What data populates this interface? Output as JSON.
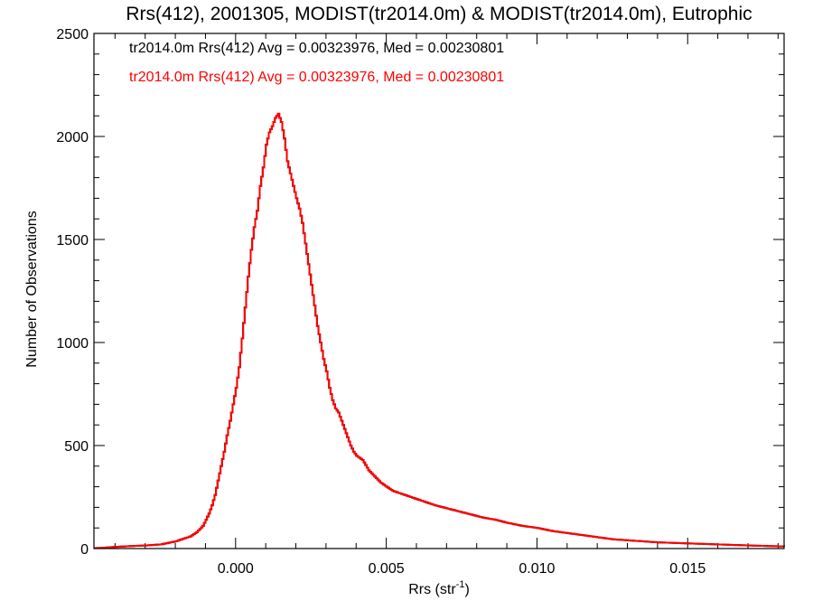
{
  "chart_data": {
    "type": "histogram",
    "title": "Rrs(412), 2001305, MODIST(tr2014.0m) & MODIST(tr2014.0m), Eutrophic",
    "xlabel": "Rrs (str",
    "xlabel_sup": "-1",
    "xlabel_close": ")",
    "ylabel": "Number of Observations",
    "xlim": [
      -0.0047,
      0.0182
    ],
    "ylim": [
      0,
      2500
    ],
    "x_ticks": [
      0.0,
      0.005,
      0.01,
      0.015
    ],
    "x_tick_labels": [
      "0.000",
      "0.005",
      "0.010",
      "0.015"
    ],
    "y_ticks": [
      0,
      500,
      1000,
      1500,
      2000,
      2500
    ],
    "y_tick_labels": [
      "0",
      "500",
      "1000",
      "1500",
      "2000",
      "2500"
    ],
    "grid": false,
    "legend_position": "top-left",
    "legend": [
      {
        "text": "tr2014.0m Rrs(412) Avg = 0.00323976, Med = 0.00230801",
        "color": "#000000"
      },
      {
        "text": "tr2014.0m Rrs(412) Avg = 0.00323976, Med = 0.00230801",
        "color": "#ff0000"
      }
    ],
    "series": [
      {
        "color": "#000000",
        "x": [
          -0.0047,
          -0.0045,
          -0.004,
          -0.0035,
          -0.003,
          -0.0025,
          -0.002,
          -0.0018,
          -0.0015,
          -0.0013,
          -0.0011,
          -0.001,
          -0.0009,
          -0.0008,
          -0.0007,
          -0.0006,
          -0.0005,
          -0.0004,
          -0.0003,
          -0.0002,
          -0.0001,
          0.0,
          0.0001,
          0.0002,
          0.0003,
          0.0004,
          0.0005,
          0.0006,
          0.0007,
          0.0008,
          0.0009,
          0.001,
          0.0011,
          0.0012,
          0.0013,
          0.0014,
          0.0015,
          0.0016,
          0.0017,
          0.0018,
          0.0019,
          0.002,
          0.0021,
          0.0022,
          0.0023,
          0.0024,
          0.0025,
          0.0026,
          0.0027,
          0.0028,
          0.0029,
          0.003,
          0.0031,
          0.0032,
          0.0033,
          0.0034,
          0.0035,
          0.0036,
          0.0037,
          0.0038,
          0.0039,
          0.004,
          0.0042,
          0.0044,
          0.0046,
          0.0048,
          0.005,
          0.0052,
          0.0054,
          0.0056,
          0.0058,
          0.006,
          0.0063,
          0.0066,
          0.007,
          0.0074,
          0.0078,
          0.0082,
          0.0086,
          0.009,
          0.0095,
          0.01,
          0.0105,
          0.011,
          0.0115,
          0.012,
          0.0125,
          0.013,
          0.0135,
          0.014,
          0.015,
          0.016,
          0.017,
          0.0182
        ],
        "y": [
          2,
          3,
          8,
          12,
          15,
          20,
          35,
          45,
          60,
          80,
          110,
          140,
          170,
          210,
          260,
          330,
          400,
          470,
          550,
          620,
          700,
          780,
          880,
          1020,
          1170,
          1320,
          1450,
          1560,
          1640,
          1760,
          1850,
          1960,
          2020,
          2050,
          2090,
          2110,
          2070,
          1990,
          1880,
          1820,
          1760,
          1700,
          1650,
          1580,
          1480,
          1380,
          1280,
          1180,
          1080,
          1000,
          920,
          860,
          780,
          720,
          680,
          660,
          620,
          580,
          540,
          500,
          470,
          450,
          430,
          380,
          350,
          320,
          300,
          280,
          270,
          260,
          250,
          240,
          225,
          210,
          195,
          180,
          165,
          150,
          140,
          125,
          110,
          100,
          85,
          75,
          65,
          55,
          45,
          40,
          35,
          30,
          25,
          20,
          15,
          10
        ]
      },
      {
        "color": "#ff0000",
        "x": [
          -0.0047,
          -0.0045,
          -0.004,
          -0.0035,
          -0.003,
          -0.0025,
          -0.002,
          -0.0018,
          -0.0015,
          -0.0013,
          -0.0011,
          -0.001,
          -0.0009,
          -0.0008,
          -0.0007,
          -0.0006,
          -0.0005,
          -0.0004,
          -0.0003,
          -0.0002,
          -0.0001,
          0.0,
          0.0001,
          0.0002,
          0.0003,
          0.0004,
          0.0005,
          0.0006,
          0.0007,
          0.0008,
          0.0009,
          0.001,
          0.0011,
          0.0012,
          0.0013,
          0.0014,
          0.0015,
          0.0016,
          0.0017,
          0.0018,
          0.0019,
          0.002,
          0.0021,
          0.0022,
          0.0023,
          0.0024,
          0.0025,
          0.0026,
          0.0027,
          0.0028,
          0.0029,
          0.003,
          0.0031,
          0.0032,
          0.0033,
          0.0034,
          0.0035,
          0.0036,
          0.0037,
          0.0038,
          0.0039,
          0.004,
          0.0042,
          0.0044,
          0.0046,
          0.0048,
          0.005,
          0.0052,
          0.0054,
          0.0056,
          0.0058,
          0.006,
          0.0063,
          0.0066,
          0.007,
          0.0074,
          0.0078,
          0.0082,
          0.0086,
          0.009,
          0.0095,
          0.01,
          0.0105,
          0.011,
          0.0115,
          0.012,
          0.0125,
          0.013,
          0.0135,
          0.014,
          0.015,
          0.016,
          0.017,
          0.0182
        ],
        "y": [
          2,
          3,
          8,
          12,
          15,
          20,
          35,
          45,
          60,
          80,
          110,
          140,
          170,
          210,
          260,
          330,
          400,
          470,
          550,
          620,
          700,
          780,
          880,
          1020,
          1170,
          1320,
          1450,
          1560,
          1640,
          1760,
          1850,
          1960,
          2020,
          2050,
          2090,
          2110,
          2070,
          1990,
          1880,
          1820,
          1760,
          1700,
          1650,
          1580,
          1480,
          1380,
          1280,
          1180,
          1080,
          1000,
          920,
          860,
          780,
          720,
          680,
          660,
          620,
          580,
          540,
          500,
          470,
          450,
          430,
          380,
          350,
          320,
          300,
          280,
          270,
          260,
          250,
          240,
          225,
          210,
          195,
          180,
          165,
          150,
          140,
          125,
          110,
          100,
          85,
          75,
          65,
          55,
          45,
          40,
          35,
          30,
          25,
          20,
          15,
          10
        ]
      }
    ]
  }
}
